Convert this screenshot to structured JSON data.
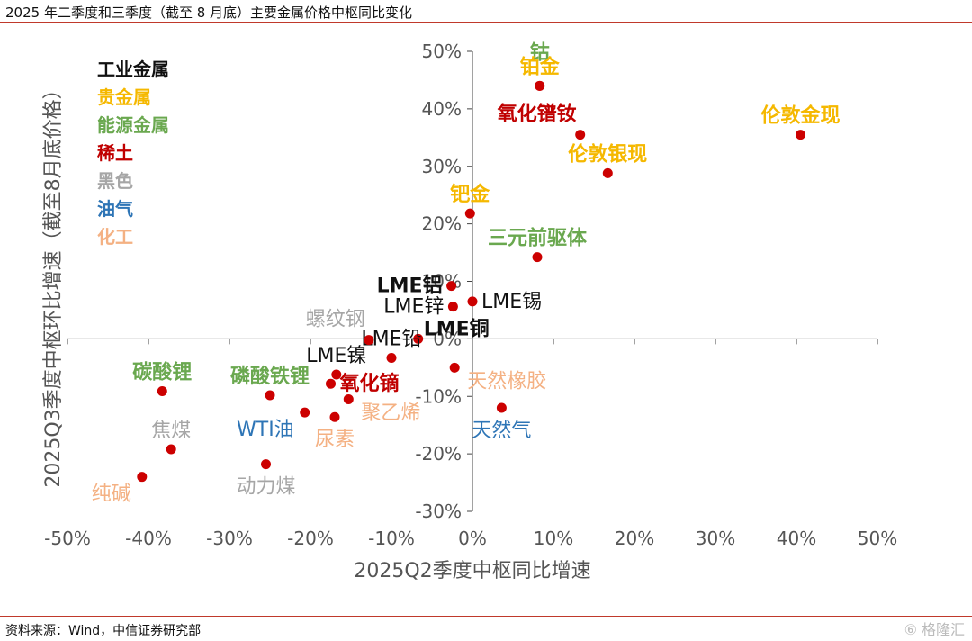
{
  "title": "2025 年二季度和三季度（截至 8 月底）主要金属价格中枢同比变化",
  "source": "资料来源：Wind，中信证券研究部",
  "watermark": "⑥ 格隆汇",
  "chart_data": {
    "type": "scatter",
    "xlabel": "2025Q2季度中枢同比增速",
    "ylabel": "2025Q3季度中枢环比增速（截至8月底价格）",
    "xlim": [
      -0.5,
      0.5
    ],
    "ylim": [
      -0.3,
      0.5
    ],
    "xticks": [
      -0.5,
      -0.4,
      -0.3,
      -0.2,
      -0.1,
      0,
      0.1,
      0.2,
      0.3,
      0.4,
      0.5
    ],
    "xtick_labels": [
      "-50%",
      "-40%",
      "-30%",
      "-20%",
      "-10%",
      "0%",
      "10%",
      "20%",
      "30%",
      "40%",
      "50%"
    ],
    "yticks": [
      -0.3,
      -0.2,
      -0.1,
      0,
      0.1,
      0.2,
      0.3,
      0.4,
      0.5
    ],
    "ytick_labels": [
      "-30%",
      "-20%",
      "-10%",
      "0%",
      "10%",
      "20%",
      "30%",
      "40%",
      "50%"
    ],
    "marker_color": "#cc0000",
    "legend": [
      {
        "name": "工业金属",
        "color": "#111111"
      },
      {
        "name": "贵金属",
        "color": "#f5b800"
      },
      {
        "name": "能源金属",
        "color": "#6aa84f"
      },
      {
        "name": "稀土",
        "color": "#c00000"
      },
      {
        "name": "黑色",
        "color": "#a6a6a6"
      },
      {
        "name": "油气",
        "color": "#2e75b6"
      },
      {
        "name": "化工",
        "color": "#f4b183"
      }
    ],
    "points": [
      {
        "label": "钴",
        "x": 0.083,
        "y": 0.44,
        "group": "能源金属",
        "anchor": "n2"
      },
      {
        "label": "铂金",
        "x": 0.083,
        "y": 0.44,
        "group": "贵金属",
        "anchor": "n"
      },
      {
        "label": "氧化镨钕",
        "x": 0.133,
        "y": 0.355,
        "group": "稀土",
        "anchor": "nw"
      },
      {
        "label": "伦敦金现",
        "x": 0.405,
        "y": 0.355,
        "group": "贵金属",
        "anchor": "n"
      },
      {
        "label": "伦敦银现",
        "x": 0.167,
        "y": 0.288,
        "group": "贵金属",
        "anchor": "n"
      },
      {
        "label": "钯金",
        "x": -0.003,
        "y": 0.218,
        "group": "贵金属",
        "anchor": "n"
      },
      {
        "label": "三元前驱体",
        "x": 0.08,
        "y": 0.142,
        "group": "能源金属",
        "anchor": "n"
      },
      {
        "label": "LME铝",
        "x": -0.026,
        "y": 0.092,
        "group": "工业金属",
        "anchor": "w"
      },
      {
        "label": "LME锡",
        "x": 0.0,
        "y": 0.065,
        "group": "工业金属",
        "anchor": "e"
      },
      {
        "label": "LME锌",
        "x": -0.024,
        "y": 0.056,
        "group": "工业金属",
        "anchor": "w"
      },
      {
        "label": "LME铜",
        "x": -0.067,
        "y": 0.0,
        "group": "工业金属",
        "anchor": "ne"
      },
      {
        "label": "LME铅",
        "x": -0.1,
        "y": -0.033,
        "group": "工业金属",
        "anchor": "n"
      },
      {
        "label": "螺纹钢",
        "x": -0.128,
        "y": -0.002,
        "group": "黑色",
        "anchor": "nw"
      },
      {
        "label": "LME镍",
        "x": -0.168,
        "y": -0.062,
        "group": "工业金属",
        "anchor": "n"
      },
      {
        "label": "氧化镝",
        "x": -0.175,
        "y": -0.078,
        "group": "稀土",
        "anchor": "e"
      },
      {
        "label": "天然橡胶",
        "x": -0.022,
        "y": -0.05,
        "group": "化工",
        "anchor": "se"
      },
      {
        "label": "碳酸锂",
        "x": -0.383,
        "y": -0.091,
        "group": "能源金属",
        "anchor": "n"
      },
      {
        "label": "磷酸铁锂",
        "x": -0.25,
        "y": -0.098,
        "group": "能源金属",
        "anchor": "n"
      },
      {
        "label": "聚乙烯",
        "x": -0.153,
        "y": -0.105,
        "group": "化工",
        "anchor": "se"
      },
      {
        "label": "天然气",
        "x": 0.036,
        "y": -0.12,
        "group": "油气",
        "anchor": "s"
      },
      {
        "label": "WTI油",
        "x": -0.207,
        "y": -0.128,
        "group": "油气",
        "anchor": "sw"
      },
      {
        "label": "尿素",
        "x": -0.17,
        "y": -0.136,
        "group": "化工",
        "anchor": "s"
      },
      {
        "label": "焦煤",
        "x": -0.372,
        "y": -0.192,
        "group": "黑色",
        "anchor": "n"
      },
      {
        "label": "动力煤",
        "x": -0.255,
        "y": -0.218,
        "group": "黑色",
        "anchor": "s"
      },
      {
        "label": "纯碱",
        "x": -0.408,
        "y": -0.24,
        "group": "化工",
        "anchor": "sw"
      }
    ]
  }
}
